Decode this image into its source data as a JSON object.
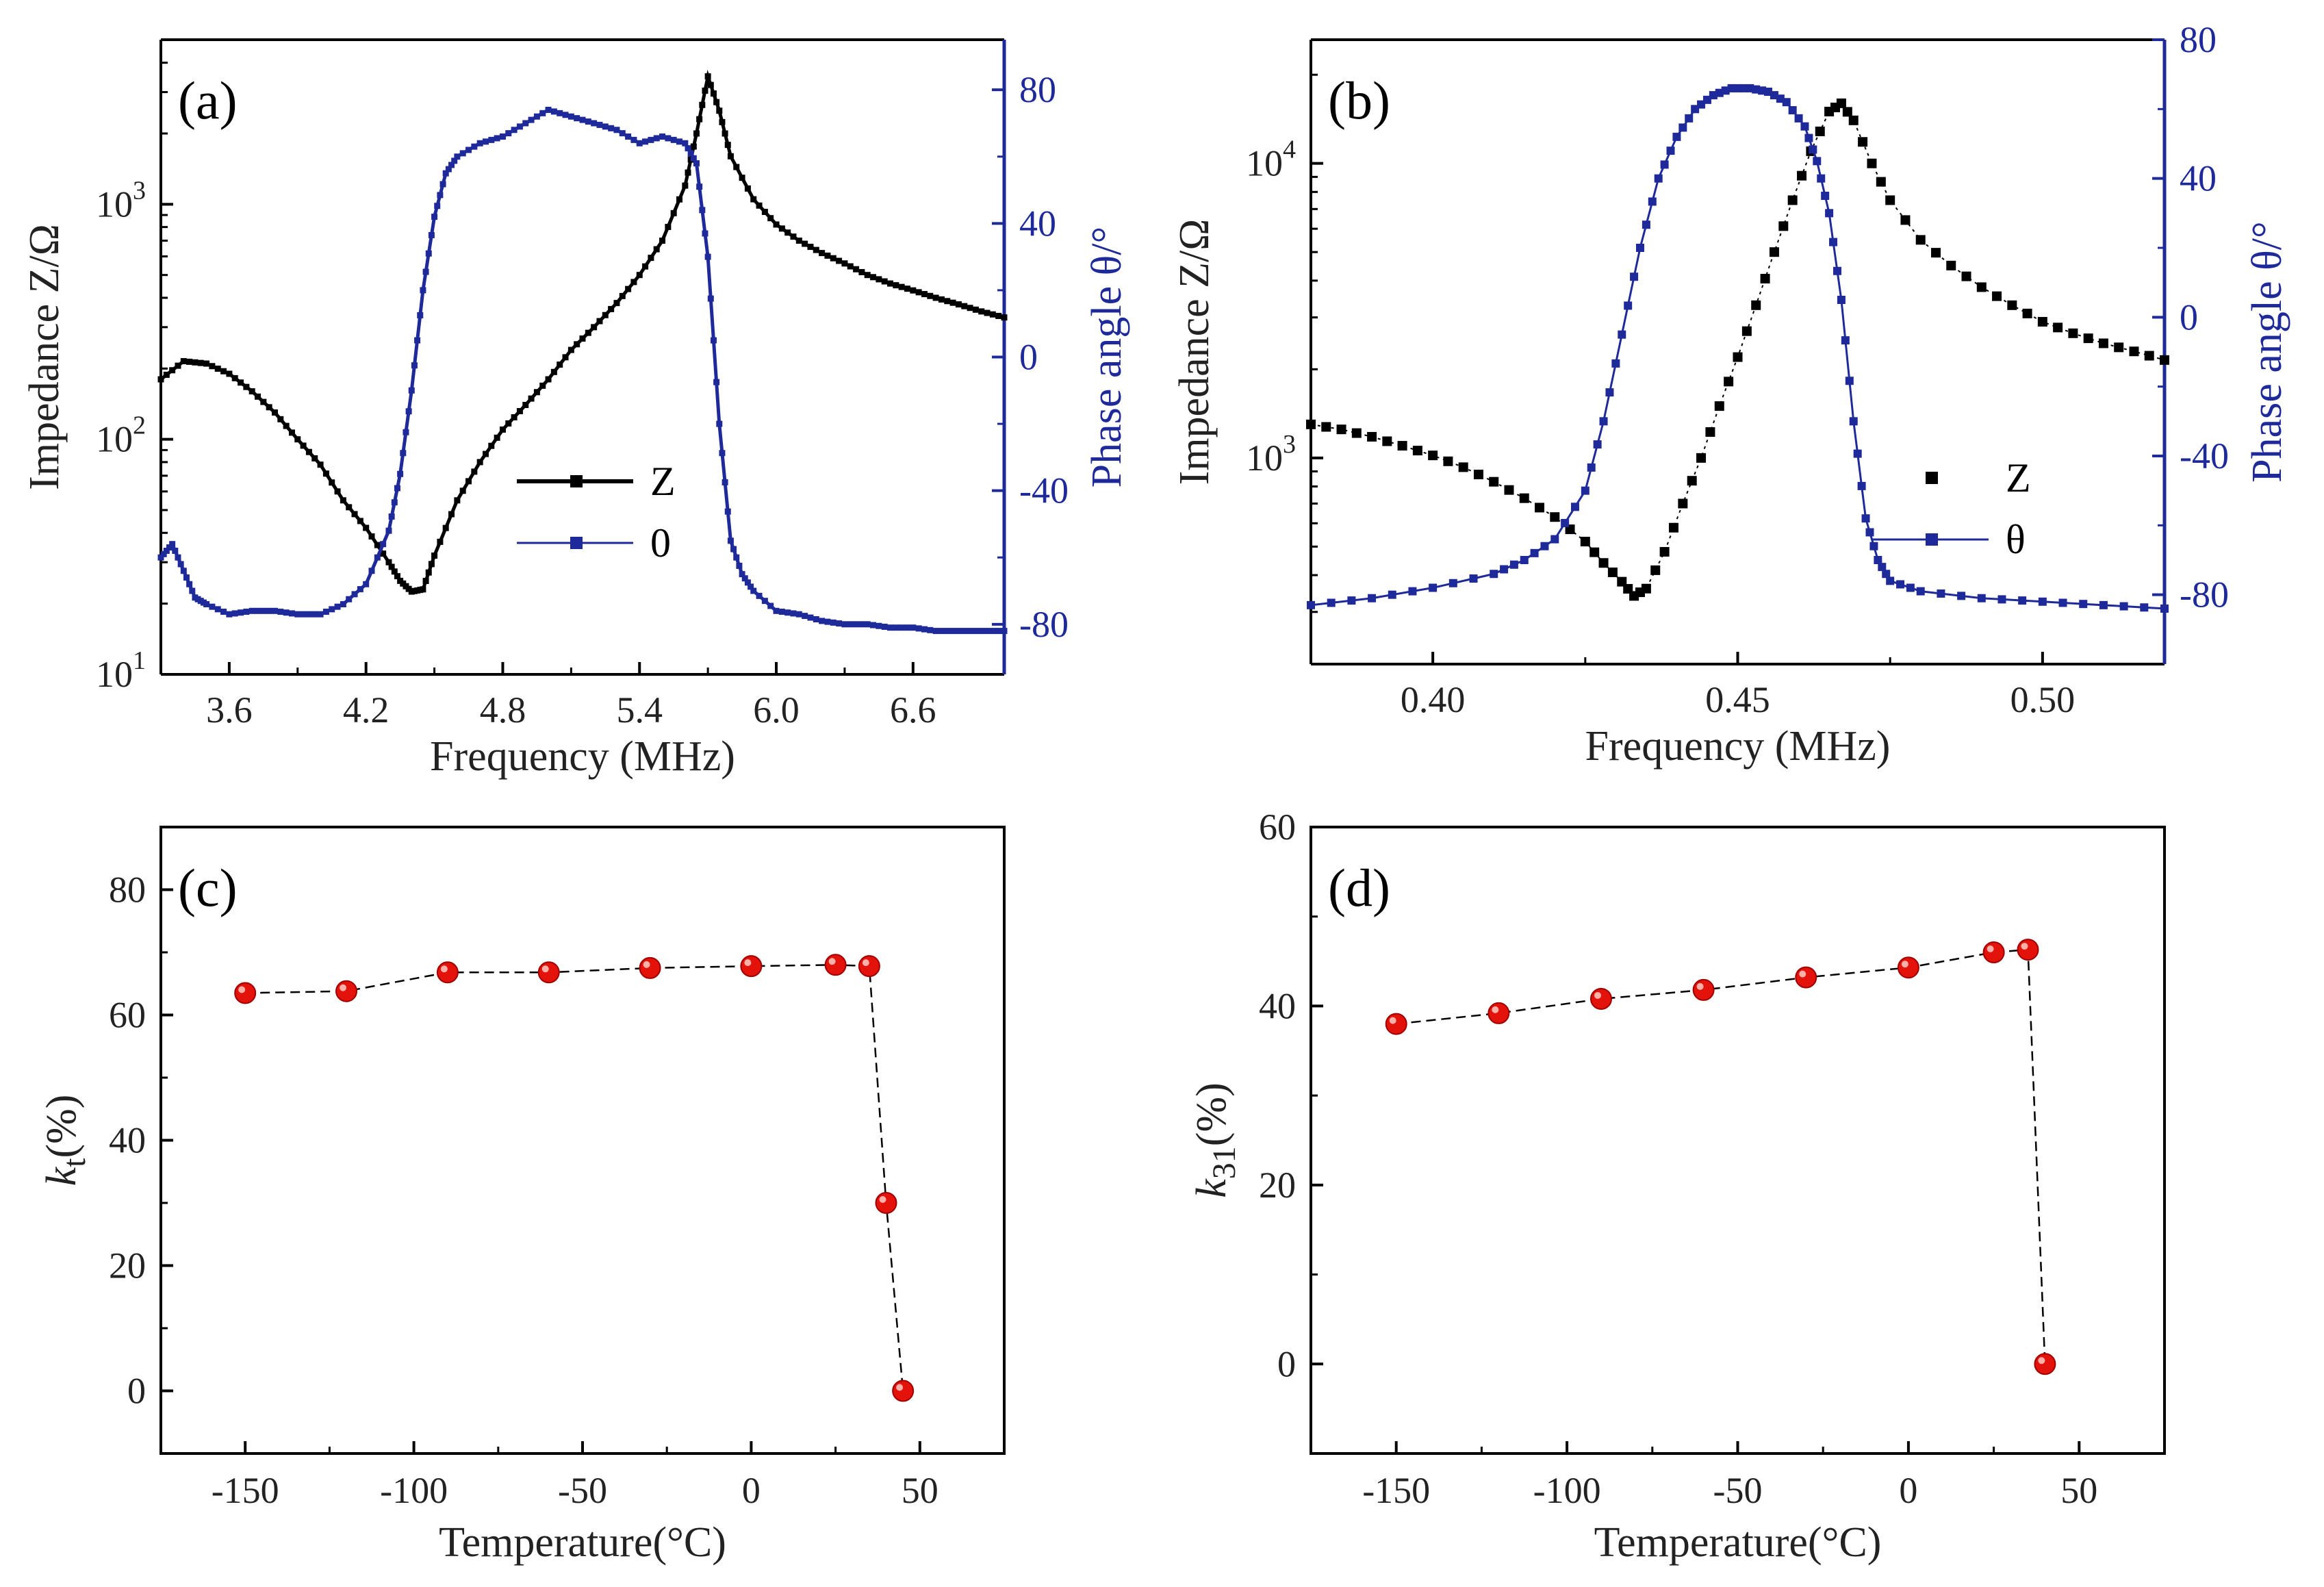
{
  "colors": {
    "impedance": "#000000",
    "phase": "#1f2a9a",
    "coupling_marker": "#e3120b",
    "coupling_line": "#000000"
  },
  "chart_data": [
    {
      "panel": "(a)",
      "type": "line",
      "xlabel": "Frequency (MHz)",
      "ylabel": "Impedance Z/Ω",
      "y2label": "Phase angle θ/°",
      "xlim": [
        3.3,
        7.0
      ],
      "xticks": [
        "3.6",
        "4.2",
        "4.8",
        "5.4",
        "6.0",
        "6.6"
      ],
      "xtick_values": [
        3.6,
        4.2,
        4.8,
        5.4,
        6.0,
        6.6
      ],
      "yscale": "log",
      "ylim_log10": [
        1,
        3.7
      ],
      "yticks_log10": [
        1,
        2,
        3
      ],
      "yticks_exp": [
        "1",
        "2",
        "3"
      ],
      "y2lim": [
        -95,
        95
      ],
      "y2ticks": [
        "-80",
        "-40",
        "0",
        "40",
        "80"
      ],
      "y2tick_values": [
        -80,
        -40,
        0,
        40,
        80
      ],
      "legend": [
        {
          "label": "Z",
          "series": "Z"
        },
        {
          "label": "0",
          "series": "theta"
        }
      ],
      "series": [
        {
          "name": "Z",
          "axis": "left",
          "x": [
            3.3,
            3.4,
            3.5,
            3.6,
            3.7,
            3.8,
            3.9,
            4.0,
            4.1,
            4.2,
            4.3,
            4.35,
            4.4,
            4.45,
            4.5,
            4.6,
            4.7,
            4.8,
            4.9,
            5.0,
            5.1,
            5.2,
            5.3,
            5.4,
            5.5,
            5.6,
            5.65,
            5.7,
            5.75,
            5.8,
            5.9,
            6.0,
            6.1,
            6.2,
            6.3,
            6.4,
            6.5,
            6.6,
            6.7,
            6.8,
            6.9,
            7.0
          ],
          "values": [
            180,
            215,
            210,
            190,
            160,
            130,
            100,
            78,
            55,
            42,
            30,
            25,
            22.5,
            23,
            32,
            55,
            80,
            110,
            140,
            180,
            240,
            300,
            380,
            500,
            700,
            1200,
            2000,
            3500,
            2500,
            1600,
            1050,
            820,
            700,
            620,
            560,
            500,
            460,
            430,
            400,
            375,
            350,
            330
          ]
        },
        {
          "name": "theta",
          "axis": "right",
          "x": [
            3.3,
            3.35,
            3.4,
            3.45,
            3.5,
            3.6,
            3.7,
            3.8,
            3.9,
            4.0,
            4.1,
            4.2,
            4.3,
            4.35,
            4.4,
            4.45,
            4.5,
            4.55,
            4.6,
            4.7,
            4.8,
            4.9,
            5.0,
            5.1,
            5.2,
            5.3,
            5.4,
            5.5,
            5.6,
            5.65,
            5.7,
            5.75,
            5.8,
            5.85,
            5.9,
            6.0,
            6.1,
            6.2,
            6.3,
            6.4,
            6.5,
            6.6,
            6.7,
            6.8,
            6.9,
            7.0
          ],
          "values": [
            -60,
            -56,
            -64,
            -72,
            -74,
            -77,
            -76,
            -76,
            -77,
            -77,
            -74,
            -68,
            -52,
            -35,
            -10,
            20,
            42,
            55,
            60,
            64,
            66,
            70,
            74,
            72,
            70,
            68,
            64,
            66,
            64,
            58,
            30,
            -20,
            -55,
            -65,
            -70,
            -76,
            -77,
            -79,
            -80,
            -80,
            -81,
            -81,
            -82,
            -82,
            -82,
            -82
          ]
        }
      ]
    },
    {
      "panel": "(b)",
      "type": "scatter",
      "xlabel": "Frequency (MHz)",
      "ylabel": "Impedance Z/Ω",
      "y2label": "Phase angle θ/°",
      "xlim": [
        0.38,
        0.52
      ],
      "xticks": [
        "0.40",
        "0.45",
        "0.50"
      ],
      "xtick_values": [
        0.4,
        0.45,
        0.5
      ],
      "yscale": "log",
      "ylim_log10": [
        2.3,
        4.42
      ],
      "yticks_log10": [
        3,
        4
      ],
      "yticks_exp": [
        "3",
        "4"
      ],
      "y2lim": [
        -100,
        80
      ],
      "y2ticks": [
        "-80",
        "-40",
        "0",
        "40",
        "80"
      ],
      "y2tick_values": [
        -80,
        -40,
        0,
        40,
        80
      ],
      "legend": [
        {
          "label": "Z",
          "series": "Z"
        },
        {
          "label": "θ",
          "series": "theta"
        }
      ],
      "series": [
        {
          "name": "Z",
          "axis": "left",
          "x": [
            0.38,
            0.385,
            0.39,
            0.395,
            0.4,
            0.405,
            0.41,
            0.415,
            0.42,
            0.425,
            0.428,
            0.431,
            0.433,
            0.435,
            0.438,
            0.441,
            0.444,
            0.447,
            0.45,
            0.453,
            0.456,
            0.459,
            0.462,
            0.465,
            0.467,
            0.469,
            0.472,
            0.475,
            0.48,
            0.485,
            0.49,
            0.495,
            0.5,
            0.505,
            0.51,
            0.515,
            0.52
          ],
          "values": [
            1300,
            1250,
            1180,
            1100,
            1020,
            930,
            830,
            730,
            630,
            520,
            440,
            380,
            340,
            360,
            480,
            700,
            1000,
            1500,
            2200,
            3300,
            5000,
            7500,
            11000,
            15000,
            16000,
            14000,
            10000,
            7500,
            5500,
            4500,
            3800,
            3300,
            2900,
            2650,
            2450,
            2300,
            2150
          ]
        },
        {
          "name": "theta",
          "axis": "right",
          "x": [
            0.38,
            0.39,
            0.4,
            0.41,
            0.415,
            0.42,
            0.425,
            0.428,
            0.431,
            0.434,
            0.437,
            0.44,
            0.443,
            0.446,
            0.449,
            0.452,
            0.455,
            0.458,
            0.461,
            0.463,
            0.465,
            0.467,
            0.469,
            0.471,
            0.473,
            0.475,
            0.48,
            0.49,
            0.5,
            0.51,
            0.52
          ],
          "values": [
            -83,
            -81,
            -78,
            -74,
            -70,
            -64,
            -50,
            -30,
            -5,
            20,
            40,
            52,
            60,
            64,
            66,
            66,
            65,
            62,
            55,
            45,
            30,
            5,
            -30,
            -58,
            -70,
            -76,
            -79,
            -81,
            -82,
            -83,
            -84
          ]
        }
      ]
    },
    {
      "panel": "(c)",
      "type": "line",
      "xlabel": "Temperature(°C)",
      "ylabel_main": "k",
      "ylabel_sub": "t",
      "ylabel_suffix": "(%)",
      "xlim": [
        -175,
        75
      ],
      "xticks": [
        "-150",
        "-100",
        "-50",
        "0",
        "50"
      ],
      "xtick_values": [
        -150,
        -100,
        -50,
        0,
        50
      ],
      "ylim": [
        -10,
        90
      ],
      "yticks": [
        "0",
        "20",
        "40",
        "60",
        "80"
      ],
      "ytick_values": [
        0,
        20,
        40,
        60,
        80
      ],
      "series": [
        {
          "name": "kt",
          "x": [
            -150,
            -120,
            -90,
            -60,
            -30,
            0,
            25,
            35,
            40,
            45
          ],
          "values": [
            63.5,
            63.8,
            66.8,
            66.8,
            67.5,
            67.8,
            68.0,
            67.8,
            30,
            0
          ]
        }
      ]
    },
    {
      "panel": "(d)",
      "type": "line",
      "xlabel": "Temperature(°C)",
      "ylabel_main": "k",
      "ylabel_sub": "31",
      "ylabel_suffix": "(%)",
      "xlim": [
        -175,
        75
      ],
      "xticks": [
        "-150",
        "-100",
        "-50",
        "0",
        "50"
      ],
      "xtick_values": [
        -150,
        -100,
        -50,
        0,
        50
      ],
      "ylim": [
        -10,
        60
      ],
      "yticks": [
        "0",
        "20",
        "40",
        "60"
      ],
      "ytick_values": [
        0,
        20,
        40,
        60
      ],
      "series": [
        {
          "name": "k31",
          "x": [
            -150,
            -120,
            -90,
            -60,
            -30,
            0,
            25,
            35,
            40
          ],
          "values": [
            38.0,
            39.2,
            40.8,
            41.8,
            43.2,
            44.3,
            46.0,
            46.3,
            0
          ]
        }
      ]
    }
  ]
}
